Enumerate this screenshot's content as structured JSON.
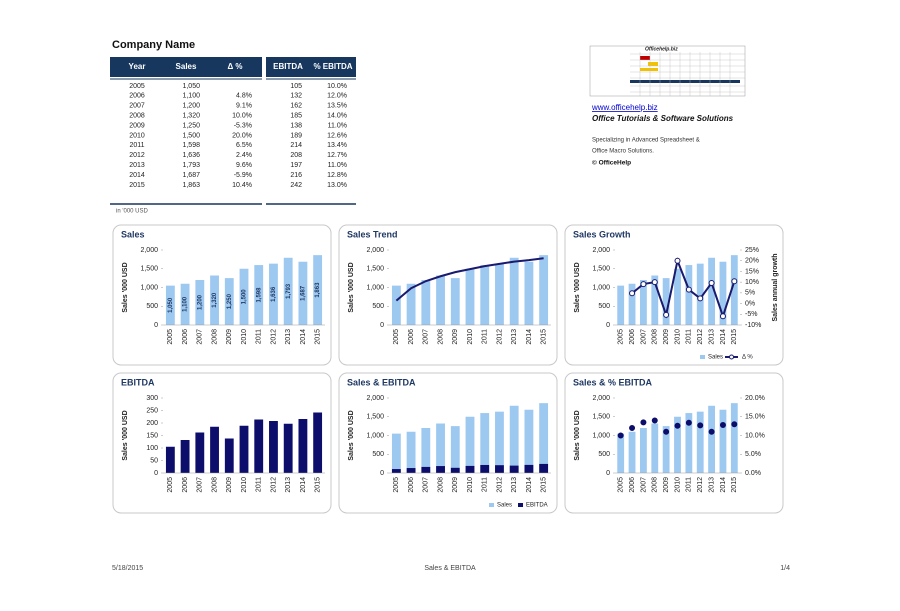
{
  "header": {
    "title": "Company Name"
  },
  "table": {
    "columns": [
      "Year",
      "Sales",
      "Δ %",
      "EBITDA",
      "% EBITDA"
    ],
    "rows": [
      [
        "2005",
        "1,050",
        null,
        "105",
        "10.0%"
      ],
      [
        "2006",
        "1,100",
        "4.8%",
        "132",
        "12.0%"
      ],
      [
        "2007",
        "1,200",
        "9.1%",
        "162",
        "13.5%"
      ],
      [
        "2008",
        "1,320",
        "10.0%",
        "185",
        "14.0%"
      ],
      [
        "2009",
        "1,250",
        "-5.3%",
        "138",
        "11.0%"
      ],
      [
        "2010",
        "1,500",
        "20.0%",
        "189",
        "12.6%"
      ],
      [
        "2011",
        "1,598",
        "6.5%",
        "214",
        "13.4%"
      ],
      [
        "2012",
        "1,636",
        "2.4%",
        "208",
        "12.7%"
      ],
      [
        "2013",
        "1,793",
        "9.6%",
        "197",
        "11.0%"
      ],
      [
        "2014",
        "1,687",
        "-5.9%",
        "216",
        "12.8%"
      ],
      [
        "2015",
        "1,863",
        "10.4%",
        "242",
        "13.0%"
      ]
    ],
    "note": "in '000 USD"
  },
  "sidebar": {
    "logo_title": "Officehelp.biz",
    "link": "www.officehelp.biz",
    "tagline": "Office Tutorials & Software Solutions",
    "lines": [
      "Specializing in Advanced Spreadsheet &",
      "Office Macro Solutions."
    ],
    "copyright": "© OfficeHelp"
  },
  "chart_data": [
    {
      "type": "bar",
      "title": "Sales",
      "ylabel": "Sales '000 USD",
      "categories": [
        "2005",
        "2006",
        "2007",
        "2008",
        "2009",
        "2010",
        "2011",
        "2012",
        "2013",
        "2014",
        "2015"
      ],
      "ylim": [
        0,
        2000
      ],
      "yticks": [
        0,
        500,
        {
          "value": 1000,
          "label": "1,000"
        },
        {
          "value": 1500,
          "label": "1,500"
        },
        {
          "value": 2000,
          "label": "2,000"
        }
      ],
      "series": [
        {
          "name": "Sales",
          "type": "bar",
          "color": "#9dc8f0",
          "values": [
            1050,
            1100,
            1200,
            1320,
            1250,
            1500,
            1598,
            1636,
            1793,
            1687,
            1863
          ],
          "value_labels": [
            "1,050",
            "1,100",
            "1,200",
            "1,320",
            "1,250",
            "1,500",
            "1,598",
            "1,636",
            "1,793",
            "1,687",
            "1,863"
          ]
        }
      ]
    },
    {
      "type": "bar",
      "title": "Sales Trend",
      "ylabel": "Sales '000 USD",
      "categories": [
        "2005",
        "2006",
        "2007",
        "2008",
        "2009",
        "2010",
        "2011",
        "2012",
        "2013",
        "2014",
        "2015"
      ],
      "ylim": [
        0,
        2000
      ],
      "yticks": [
        0,
        500,
        {
          "value": 1000,
          "label": "1,000"
        },
        {
          "value": 1500,
          "label": "1,500"
        },
        {
          "value": 2000,
          "label": "2,000"
        }
      ],
      "series": [
        {
          "name": "Sales",
          "type": "bar",
          "color": "#9dc8f0",
          "values": [
            1050,
            1100,
            1200,
            1320,
            1250,
            1500,
            1598,
            1636,
            1793,
            1687,
            1863
          ]
        }
      ],
      "trend": {
        "color": "#1a1a6e",
        "values": [
          650,
          980,
          1170,
          1300,
          1410,
          1490,
          1570,
          1630,
          1690,
          1730,
          1780
        ]
      }
    },
    {
      "type": "bar",
      "title": "Sales Growth",
      "ylabel": "Sales '000 USD",
      "y2label": "Sales annual growth",
      "categories": [
        "2005",
        "2006",
        "2007",
        "2008",
        "2009",
        "2010",
        "2011",
        "2012",
        "2013",
        "2014",
        "2015"
      ],
      "ylim": [
        0,
        2000
      ],
      "yticks": [
        0,
        500,
        {
          "value": 1000,
          "label": "1,000"
        },
        {
          "value": 1500,
          "label": "1,500"
        },
        {
          "value": 2000,
          "label": "2,000"
        }
      ],
      "y2lim": [
        -10,
        25
      ],
      "y2ticks": [
        {
          "value": -10,
          "label": "-10%"
        },
        {
          "value": -5,
          "label": "-5%"
        },
        {
          "value": 0,
          "label": "0%"
        },
        {
          "value": 5,
          "label": "5%"
        },
        {
          "value": 10,
          "label": "10%"
        },
        {
          "value": 15,
          "label": "15%"
        },
        {
          "value": 20,
          "label": "20%"
        },
        {
          "value": 25,
          "label": "25%"
        }
      ],
      "legend": "bottom",
      "series": [
        {
          "name": "Sales",
          "type": "bar",
          "color": "#9dc8f0",
          "values": [
            1050,
            1100,
            1200,
            1320,
            1250,
            1500,
            1598,
            1636,
            1793,
            1687,
            1863
          ]
        },
        {
          "name": "Δ %",
          "type": "line",
          "axis": "y2",
          "color": "#1a1a6e",
          "values": [
            null,
            4.8,
            9.1,
            10.0,
            -5.3,
            20.0,
            6.5,
            2.4,
            9.6,
            -5.9,
            10.4
          ]
        }
      ]
    },
    {
      "type": "bar",
      "title": "EBITDA",
      "ylabel": "Sales '000 USD",
      "categories": [
        "2005",
        "2006",
        "2007",
        "2008",
        "2009",
        "2010",
        "2011",
        "2012",
        "2013",
        "2014",
        "2015"
      ],
      "ylim": [
        0,
        300
      ],
      "yticks": [
        0,
        50,
        100,
        150,
        200,
        250,
        300
      ],
      "series": [
        {
          "name": "EBITDA",
          "type": "bar",
          "color": "#0d0d6b",
          "values": [
            105,
            132,
            162,
            185,
            138,
            189,
            214,
            208,
            197,
            216,
            242
          ]
        }
      ]
    },
    {
      "type": "bar",
      "title": "Sales & EBITDA",
      "ylabel": "Sales '000 USD",
      "bar_mode": "overlay",
      "legend": "bottom",
      "categories": [
        "2005",
        "2006",
        "2007",
        "2008",
        "2009",
        "2010",
        "2011",
        "2012",
        "2013",
        "2014",
        "2015"
      ],
      "ylim": [
        0,
        2000
      ],
      "yticks": [
        0,
        500,
        {
          "value": 1000,
          "label": "1,000"
        },
        {
          "value": 1500,
          "label": "1,500"
        },
        {
          "value": 2000,
          "label": "2,000"
        }
      ],
      "series": [
        {
          "name": "Sales",
          "type": "bar",
          "color": "#9dc8f0",
          "values": [
            1050,
            1100,
            1200,
            1320,
            1250,
            1500,
            1598,
            1636,
            1793,
            1687,
            1863
          ]
        },
        {
          "name": "EBITDA",
          "type": "bar",
          "color": "#0d0d6b",
          "values": [
            105,
            132,
            162,
            185,
            138,
            189,
            214,
            208,
            197,
            216,
            242
          ]
        }
      ]
    },
    {
      "type": "bar",
      "title": "Sales & % EBITDA",
      "ylabel": "Sales '000 USD",
      "categories": [
        "2005",
        "2006",
        "2007",
        "2008",
        "2009",
        "2010",
        "2011",
        "2012",
        "2013",
        "2014",
        "2015"
      ],
      "ylim": [
        0,
        2000
      ],
      "yticks": [
        0,
        500,
        {
          "value": 1000,
          "label": "1,000"
        },
        {
          "value": 1500,
          "label": "1,500"
        },
        {
          "value": 2000,
          "label": "2,000"
        }
      ],
      "y2lim": [
        0,
        20
      ],
      "y2ticks": [
        {
          "value": 0,
          "label": "0.0%"
        },
        {
          "value": 5,
          "label": "5.0%"
        },
        {
          "value": 10,
          "label": "10.0%"
        },
        {
          "value": 15,
          "label": "15.0%"
        },
        {
          "value": 20,
          "label": "20.0%"
        }
      ],
      "series": [
        {
          "name": "Sales",
          "type": "bar",
          "color": "#9dc8f0",
          "values": [
            1050,
            1100,
            1200,
            1320,
            1250,
            1500,
            1598,
            1636,
            1793,
            1687,
            1863
          ]
        },
        {
          "name": "% EBITDA",
          "type": "scatter",
          "axis": "y2",
          "color": "#0d0d6b",
          "values": [
            10.0,
            12.0,
            13.5,
            14.0,
            11.0,
            12.6,
            13.4,
            12.7,
            11.0,
            12.8,
            13.0
          ]
        }
      ]
    }
  ],
  "footer": {
    "date": "5/18/2015",
    "title": "Sales & EBITDA",
    "page": "1/4"
  }
}
